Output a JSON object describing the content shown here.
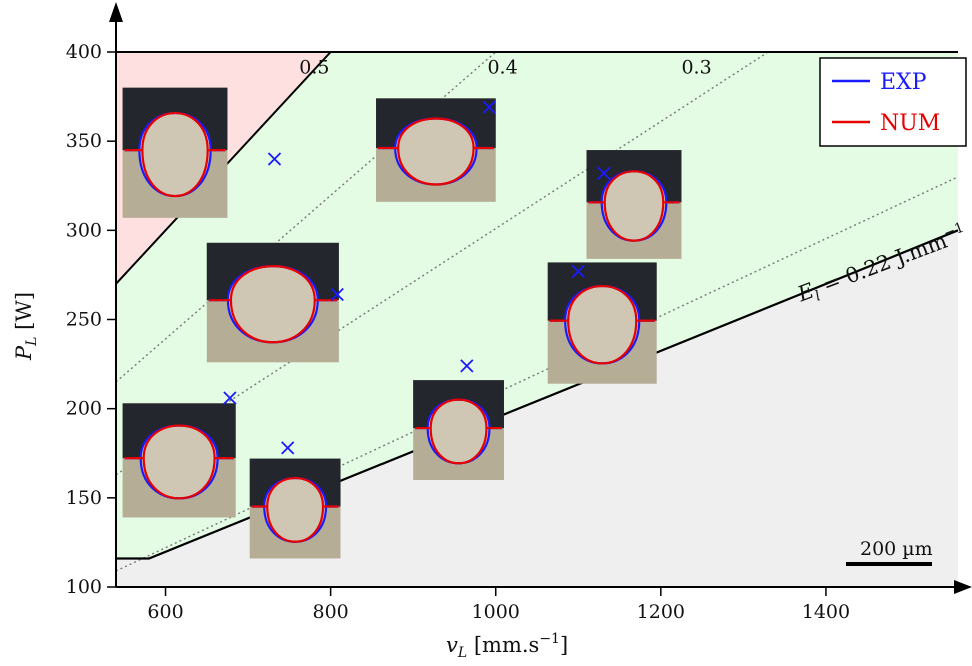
{
  "chart_data": {
    "type": "scatter",
    "xlabel": "v_L [mm.s^-1]",
    "xlabel_parts": {
      "var": "v",
      "sub": "L",
      "unit": " [mm.s",
      "exp": "−1",
      "close": "]"
    },
    "ylabel": "P_L [W]",
    "ylabel_parts": {
      "var": "P",
      "sub": "L",
      "unit": " [W]"
    },
    "xlim": [
      540,
      1560
    ],
    "ylim": [
      100,
      400
    ],
    "x_ticks": [
      600,
      800,
      1000,
      1200,
      1400
    ],
    "y_ticks": [
      100,
      150,
      200,
      250,
      300,
      350,
      400
    ],
    "x_tick_labels": [
      "600",
      "800",
      "1000",
      "1200",
      "1400"
    ],
    "y_tick_labels": [
      "100",
      "150",
      "200",
      "250",
      "300",
      "350",
      "400"
    ],
    "legend_position": "top-right",
    "series": [
      {
        "name": "EXP",
        "color": "#1a1aff"
      },
      {
        "name": "NUM",
        "color": "#e60000"
      }
    ],
    "points": [
      {
        "x": 732,
        "y": 340
      },
      {
        "x": 992,
        "y": 369
      },
      {
        "x": 1131,
        "y": 332
      },
      {
        "x": 808,
        "y": 264
      },
      {
        "x": 1100,
        "y": 277
      },
      {
        "x": 965,
        "y": 224
      },
      {
        "x": 678,
        "y": 206
      },
      {
        "x": 748,
        "y": 178
      }
    ],
    "marker_color": "#1a1aff",
    "regions": [
      {
        "name": "upper-left",
        "color": "#ffe0e0",
        "bounded_by": [
          [
            540,
            270
          ],
          [
            800,
            400
          ]
        ]
      },
      {
        "name": "middle",
        "color": "#e4fbe4"
      },
      {
        "name": "below-threshold",
        "color": "#efefef",
        "bounded_by": [
          [
            580,
            116
          ],
          [
            1560,
            300
          ]
        ]
      }
    ],
    "energy_lines": [
      {
        "label": "0.5",
        "from": [
          540,
          270
        ],
        "to": [
          800,
          400
        ],
        "style": "solid"
      },
      {
        "label": "0.4",
        "from": [
          540,
          215
        ],
        "to": [
          1000,
          400
        ],
        "style": "dotted"
      },
      {
        "label": "0.3",
        "from": [
          540,
          163
        ],
        "to": [
          1330,
          400
        ],
        "style": "dotted"
      },
      {
        "label": "0.22",
        "from": [
          540,
          109
        ],
        "to": [
          1560,
          330
        ],
        "style": "dotted"
      }
    ],
    "threshold_line": {
      "label": "E_l = 0.22 J.mm^-1",
      "from": [
        580,
        116
      ],
      "to": [
        1560,
        300
      ]
    },
    "threshold_label_parts": {
      "var": "E",
      "sub": "l",
      "rest": " = 0.22 J.mm",
      "exp": "−1"
    },
    "scale_bar_label": "200 µm",
    "cross_sections": [
      {
        "name": "section-1",
        "x0": 548,
        "y0": 307,
        "x1": 675,
        "y1": 380
      },
      {
        "name": "section-2",
        "x0": 855,
        "y0": 316,
        "x1": 1000,
        "y1": 374
      },
      {
        "name": "section-3",
        "x0": 1110,
        "y0": 284,
        "x1": 1225,
        "y1": 345
      },
      {
        "name": "section-4",
        "x0": 650,
        "y0": 226,
        "x1": 810,
        "y1": 293
      },
      {
        "name": "section-5",
        "x0": 1063,
        "y0": 214,
        "x1": 1195,
        "y1": 282
      },
      {
        "name": "section-6",
        "x0": 900,
        "y0": 160,
        "x1": 1010,
        "y1": 216
      },
      {
        "name": "section-7",
        "x0": 548,
        "y0": 139,
        "x1": 685,
        "y1": 203
      },
      {
        "name": "section-8",
        "x0": 702,
        "y0": 116,
        "x1": 812,
        "y1": 172
      }
    ]
  }
}
